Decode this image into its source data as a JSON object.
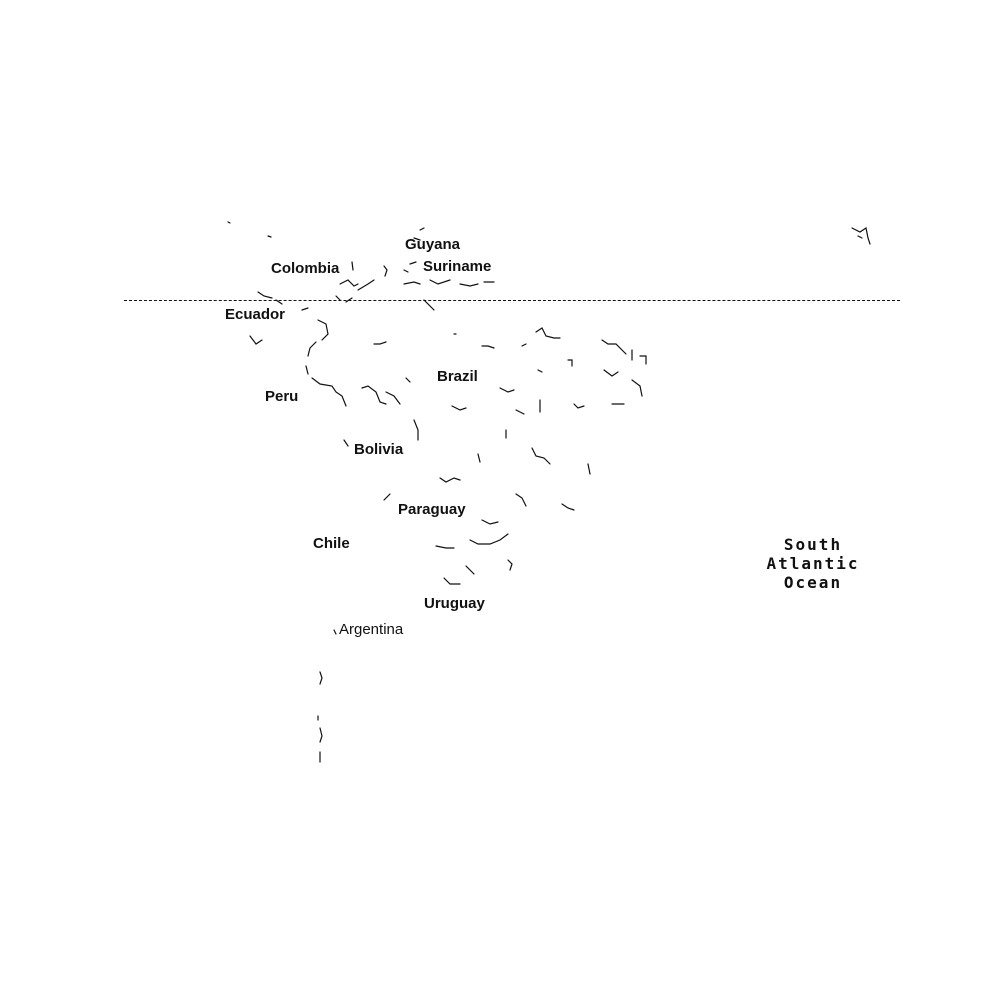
{
  "map": {
    "countries": [
      {
        "id": "guyana",
        "label": "Guyana"
      },
      {
        "id": "suriname",
        "label": "Suriname"
      },
      {
        "id": "colombia",
        "label": "Colombia"
      },
      {
        "id": "ecuador",
        "label": "Ecuador"
      },
      {
        "id": "brazil",
        "label": "Brazil"
      },
      {
        "id": "peru",
        "label": "Peru"
      },
      {
        "id": "bolivia",
        "label": "Bolivia"
      },
      {
        "id": "paraguay",
        "label": "Paraguay"
      },
      {
        "id": "chile",
        "label": "Chile"
      },
      {
        "id": "uruguay",
        "label": "Uruguay"
      },
      {
        "id": "argentina",
        "label": "Argentina"
      }
    ],
    "ocean": {
      "line1": "South",
      "line2": "Atlantic",
      "line3": "Ocean"
    },
    "colors": {
      "background": "#ffffff",
      "ink": "#111111"
    }
  }
}
